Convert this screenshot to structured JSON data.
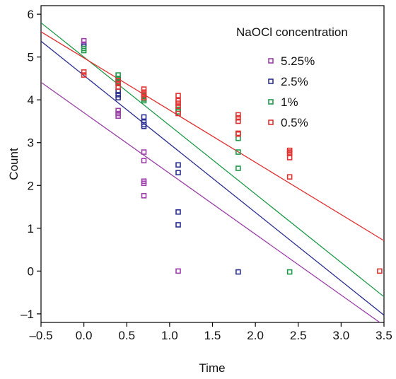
{
  "chart_data": {
    "type": "scatter",
    "title": "",
    "xlabel": "Time",
    "ylabel": "Count",
    "xlim": [
      -0.5,
      3.5
    ],
    "ylim": [
      -1.2,
      6.2
    ],
    "xticks": [
      -0.5,
      0.0,
      0.5,
      1.0,
      1.5,
      2.0,
      2.5,
      3.0,
      3.5
    ],
    "xtick_labels": [
      "–0.5",
      "0.0",
      "0.5",
      "1.0",
      "1.5",
      "2.0",
      "2.5",
      "3.0",
      "3.5"
    ],
    "yticks": [
      -1,
      0,
      1,
      2,
      3,
      4,
      5,
      6
    ],
    "ytick_labels": [
      "–1",
      "0",
      "1",
      "2",
      "3",
      "4",
      "5",
      "6"
    ],
    "grid": false,
    "legend": {
      "title": "NaOCl concentration",
      "position": "top-right"
    },
    "series": [
      {
        "name": "5.25%",
        "color": "#9b3fa8",
        "points": [
          [
            0,
            5.38
          ],
          [
            0,
            5.3
          ],
          [
            0.4,
            3.75
          ],
          [
            0.4,
            3.68
          ],
          [
            0.4,
            3.62
          ],
          [
            0.7,
            2.78
          ],
          [
            0.7,
            2.58
          ],
          [
            0.7,
            2.1
          ],
          [
            0.7,
            2.05
          ],
          [
            0.7,
            1.76
          ],
          [
            1.1,
            0.0
          ]
        ],
        "fit": {
          "intercept": 3.7,
          "slope": -1.42
        }
      },
      {
        "name": "2.5%",
        "color": "#2b2f8f",
        "points": [
          [
            0,
            5.25
          ],
          [
            0.4,
            4.2
          ],
          [
            0.4,
            4.12
          ],
          [
            0.4,
            4.05
          ],
          [
            0.7,
            3.6
          ],
          [
            0.7,
            3.48
          ],
          [
            0.7,
            3.42
          ],
          [
            0.7,
            3.38
          ],
          [
            1.1,
            2.48
          ],
          [
            1.1,
            2.3
          ],
          [
            1.1,
            1.38
          ],
          [
            1.1,
            1.08
          ],
          [
            1.8,
            -0.02
          ]
        ],
        "fit": {
          "intercept": 4.57,
          "slope": -1.6
        }
      },
      {
        "name": "1%",
        "color": "#1e9a4a",
        "points": [
          [
            0,
            5.2
          ],
          [
            0,
            5.15
          ],
          [
            0.4,
            4.58
          ],
          [
            0.4,
            4.5
          ],
          [
            0.4,
            4.42
          ],
          [
            0.7,
            4.1
          ],
          [
            0.7,
            4.02
          ],
          [
            0.7,
            3.98
          ],
          [
            1.1,
            3.78
          ],
          [
            1.1,
            3.72
          ],
          [
            1.8,
            3.2
          ],
          [
            1.8,
            3.1
          ],
          [
            1.8,
            2.78
          ],
          [
            1.8,
            2.4
          ],
          [
            2.4,
            -0.02
          ]
        ],
        "fit": {
          "intercept": 5.0,
          "slope": -1.6
        }
      },
      {
        "name": "0.5%",
        "color": "#e03131",
        "points": [
          [
            0,
            4.65
          ],
          [
            0,
            4.58
          ],
          [
            0.4,
            4.45
          ],
          [
            0.4,
            4.38
          ],
          [
            0.4,
            4.3
          ],
          [
            0.7,
            4.25
          ],
          [
            0.7,
            4.18
          ],
          [
            0.7,
            4.12
          ],
          [
            0.7,
            4.05
          ],
          [
            1.1,
            4.1
          ],
          [
            1.1,
            3.98
          ],
          [
            1.1,
            3.92
          ],
          [
            1.1,
            3.85
          ],
          [
            1.1,
            3.68
          ],
          [
            1.8,
            3.65
          ],
          [
            1.8,
            3.58
          ],
          [
            1.8,
            3.5
          ],
          [
            1.8,
            3.22
          ],
          [
            1.8,
            3.2
          ],
          [
            2.4,
            2.82
          ],
          [
            2.4,
            2.78
          ],
          [
            2.4,
            2.75
          ],
          [
            2.4,
            2.65
          ],
          [
            2.4,
            2.2
          ],
          [
            3.45,
            0.0
          ]
        ],
        "fit": {
          "intercept": 4.98,
          "slope": -1.22
        }
      }
    ]
  }
}
